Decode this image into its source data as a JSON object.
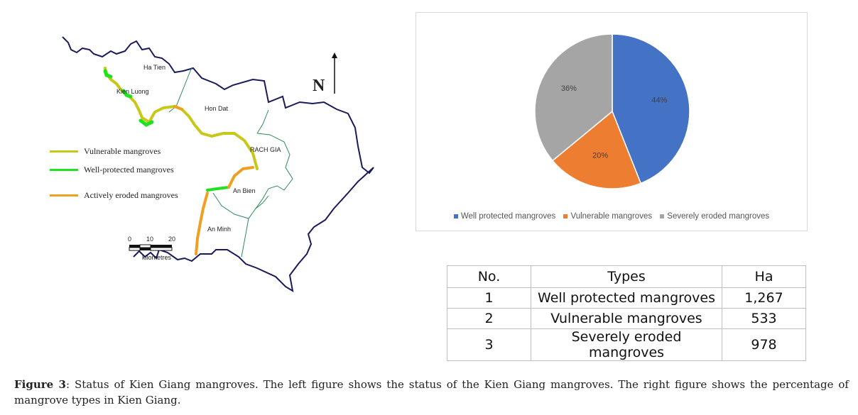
{
  "map": {
    "places": [
      "Ha Tien",
      "Kien Luong",
      "Hon Dat",
      "RACH GIA",
      "An Bien",
      "An Minh"
    ],
    "north_label": "N",
    "legend": [
      {
        "label": "Vulnerable mangroves",
        "color": "#c8c818"
      },
      {
        "label": "Well-protected mangroves",
        "color": "#22e022"
      },
      {
        "label": "Actively eroded mangroves",
        "color": "#f0a020"
      }
    ],
    "scale": {
      "ticks": [
        "0",
        "10",
        "20"
      ],
      "unit": "kilometres"
    }
  },
  "chart_data": {
    "type": "pie",
    "categories": [
      "Well protected mangroves",
      "Vulnerable mangroves",
      "Severely eroded mangroves"
    ],
    "values": [
      44,
      20,
      36
    ],
    "labels": [
      "44%",
      "20%",
      "36%"
    ],
    "colors": [
      "#4472c4",
      "#ed7d31",
      "#a5a5a5"
    ],
    "title": "",
    "legend_position": "bottom"
  },
  "table": {
    "headers": [
      "No.",
      "Types",
      "Ha"
    ],
    "rows": [
      [
        "1",
        "Well protected mangroves",
        "1,267"
      ],
      [
        "2",
        "Vulnerable mangroves",
        "533"
      ],
      [
        "3",
        "Severely eroded mangroves",
        "978"
      ]
    ]
  },
  "caption": {
    "label": "Figure 3",
    "text": ": Status of Kien Giang mangroves. The left figure shows the status of the Kien Giang mangroves. The right figure shows the percentage of mangrove types in Kien Giang."
  }
}
